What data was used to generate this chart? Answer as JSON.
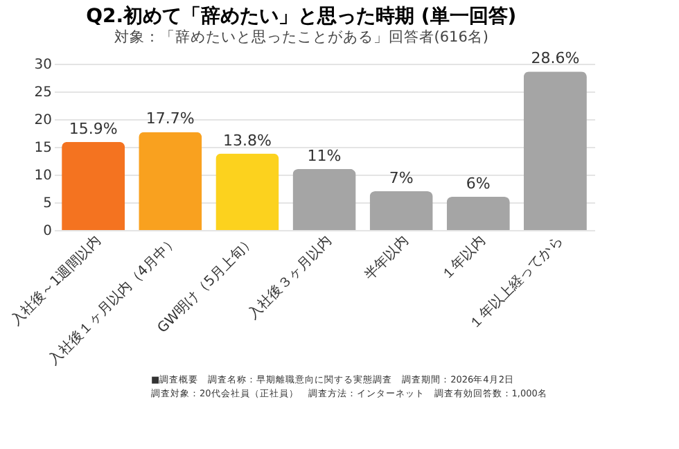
{
  "chart_data": {
    "type": "bar",
    "title": "Q2.初めて「辞めたい」と思った時期 (単一回答)",
    "subtitle": "対象：「辞めたいと思ったことがある」回答者(616名)",
    "categories": [
      "入社後～1週間以内",
      "入社後１ヶ月以内（4月中）",
      "GW明け（5月上旬）",
      "入社後３ヶ月以内",
      "半年以内",
      "１年以内",
      "１年以上経ってから"
    ],
    "values": [
      15.9,
      17.7,
      13.8,
      11,
      7,
      6,
      28.6
    ],
    "colors": [
      "#f47320",
      "#f9a11f",
      "#fcd21e",
      "#a5a5a5",
      "#a5a5a5",
      "#a5a5a5",
      "#a5a5a5"
    ],
    "value_labels": [
      "15.9%",
      "17.7%",
      "13.8%",
      "11%",
      "7%",
      "6%",
      "28.6%"
    ],
    "ylim": [
      0,
      30
    ],
    "yticks": [
      0,
      5,
      10,
      15,
      20,
      25,
      30
    ],
    "grid": "y",
    "annotations": [
      "■調査概要　調査名称：早期離職意向に関する実態調査　調査期間：2026年4月2日",
      "調査対象：20代会社員（正社員）　調査方法：インターネット　調査有効回答数：1,000名"
    ]
  }
}
